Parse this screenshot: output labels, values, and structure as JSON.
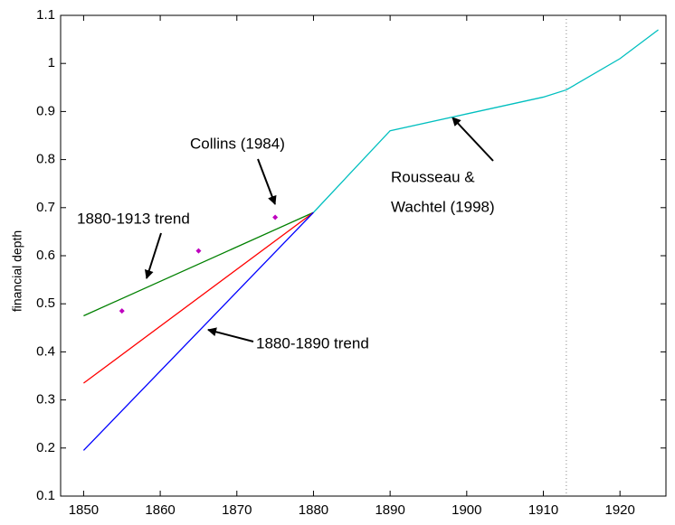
{
  "chart_data": {
    "type": "line",
    "ylabel": "financial depth",
    "xlim": [
      1847,
      1926
    ],
    "ylim": [
      0.1,
      1.1
    ],
    "xticks": [
      1850,
      1860,
      1870,
      1880,
      1890,
      1900,
      1910,
      1920
    ],
    "yticks": [
      0.1,
      0.2,
      0.3,
      0.4,
      0.5,
      0.6,
      0.7,
      0.8,
      0.9,
      1,
      1.1
    ],
    "series": [
      {
        "color": "#008000",
        "x": [
          1850,
          1880
        ],
        "values": [
          0.475,
          0.69
        ]
      },
      {
        "color": "#ff0000",
        "x": [
          1850,
          1880
        ],
        "values": [
          0.335,
          0.69
        ]
      },
      {
        "color": "#0000ff",
        "x": [
          1850,
          1880
        ],
        "values": [
          0.195,
          0.69
        ]
      },
      {
        "color": "#00bfbf",
        "x": [
          1880,
          1890,
          1900,
          1910,
          1913,
          1920,
          1925
        ],
        "values": [
          0.69,
          0.86,
          0.895,
          0.93,
          0.945,
          1.01,
          1.07
        ]
      },
      {
        "color": "#bf00bf",
        "marker": "diamond",
        "x": [
          1855,
          1865,
          1875
        ],
        "values": [
          0.485,
          0.61,
          0.68
        ]
      }
    ],
    "vline": 1913,
    "annotations": [
      "Collins (1984)",
      "1880-1913 trend",
      "1880-1890 trend",
      "Rousseau &",
      "Wachtel (1998)"
    ]
  }
}
